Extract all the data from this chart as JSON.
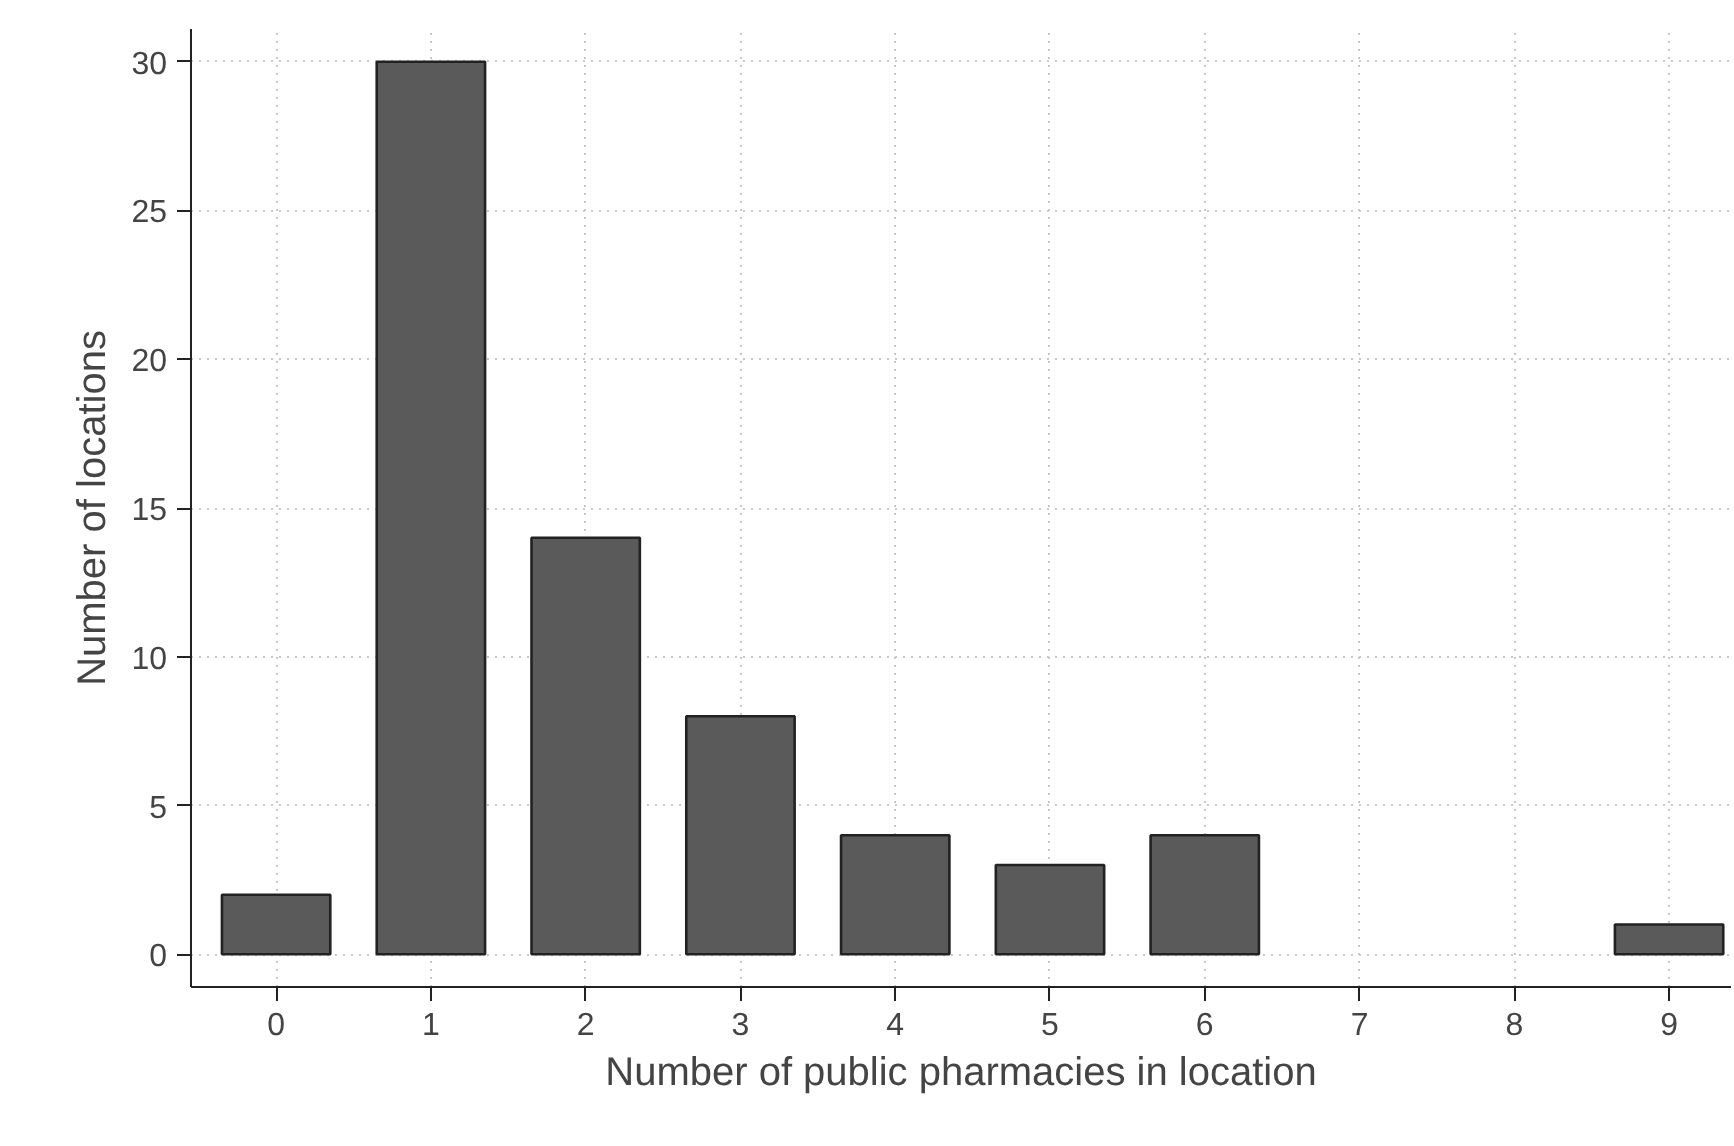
{
  "chart_data": {
    "type": "bar",
    "xlabel": "Number of public pharmacies in location",
    "ylabel": "Number of locations",
    "x": [
      0,
      1,
      2,
      3,
      4,
      5,
      6,
      9
    ],
    "values": [
      2,
      30,
      14,
      8,
      4,
      3,
      4,
      1
    ],
    "color": "#5a5a5a",
    "xlim": [
      -0.55,
      9.4
    ],
    "ylim": [
      -1.1,
      31.1
    ],
    "xticks": [
      0,
      1,
      2,
      3,
      4,
      5,
      6,
      7,
      8,
      9
    ],
    "yticks": [
      0,
      5,
      10,
      15,
      20,
      25,
      30
    ],
    "grid": true
  }
}
